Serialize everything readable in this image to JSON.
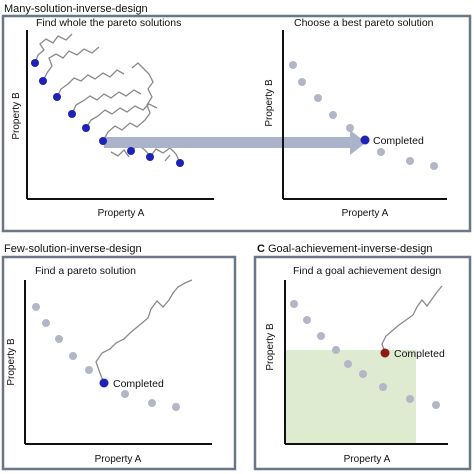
{
  "colors": {
    "frame": "#6b7689",
    "axis": "#111111",
    "pareto_point": "#b3b6c6",
    "search_point": "#1f22b6",
    "goal_point": "#8e1b14",
    "path": "#8a8a8a",
    "arrow": "#aab3c9",
    "goal_region": "#deebd0"
  },
  "section_titles": {
    "many": "Many-solution-inverse-design",
    "few": "Few-solution-inverse-design",
    "goal_badge": "C",
    "goal": "Goal-achievement-inverse-design"
  },
  "panels": {
    "find_all": {
      "title": "Find whole the pareto solutions",
      "xlabel": "Property A",
      "ylabel": "Property B"
    },
    "choose_best": {
      "title": "Choose a best pareto solution",
      "xlabel": "Property A",
      "ylabel": "Property B",
      "completed_label": "Completed"
    },
    "find_one": {
      "title": "Find a pareto solution",
      "xlabel": "Property A",
      "ylabel": "Property B",
      "completed_label": "Completed"
    },
    "goal": {
      "title": "Find a goal achievement design",
      "xlabel": "Property A",
      "ylabel": "Property B",
      "completed_label": "Completed"
    }
  },
  "icons": {
    "transfer_arrow": "right-arrow-icon"
  }
}
